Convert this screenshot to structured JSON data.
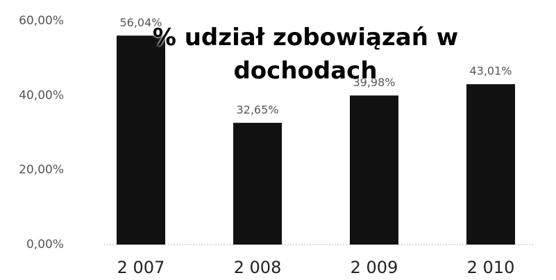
{
  "chart_data": {
    "type": "bar",
    "title": "% udział zobowiązań w dochodach",
    "categories": [
      "2 007",
      "2 008",
      "2 009",
      "2 010"
    ],
    "values": [
      56.04,
      32.65,
      39.98,
      43.01
    ],
    "value_labels": [
      "56,04%",
      "32,65%",
      "39,98%",
      "43,01%"
    ],
    "color": "#111111",
    "ylim": [
      0,
      60
    ],
    "yticks": [
      {
        "value": 0,
        "label": "0,00%"
      },
      {
        "value": 20,
        "label": "20,00%"
      },
      {
        "value": 40,
        "label": "40,00%"
      },
      {
        "value": 60,
        "label": "60,00%"
      }
    ],
    "grid": false
  }
}
